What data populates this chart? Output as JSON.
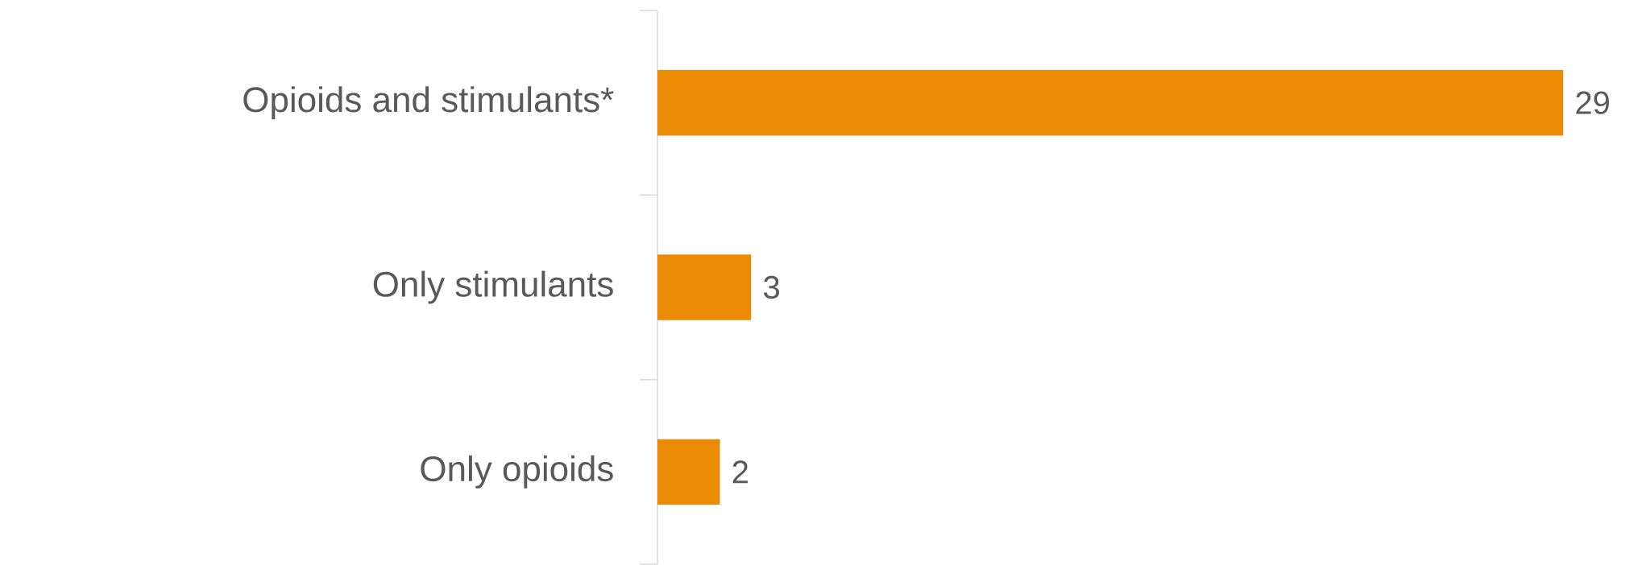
{
  "chart_data": {
    "type": "bar",
    "orientation": "horizontal",
    "categories": [
      "Opioids and stimulants*",
      "Only stimulants",
      "Only opioids"
    ],
    "values": [
      29,
      3,
      2
    ],
    "color": "#eb8a03",
    "data_labels": true
  }
}
